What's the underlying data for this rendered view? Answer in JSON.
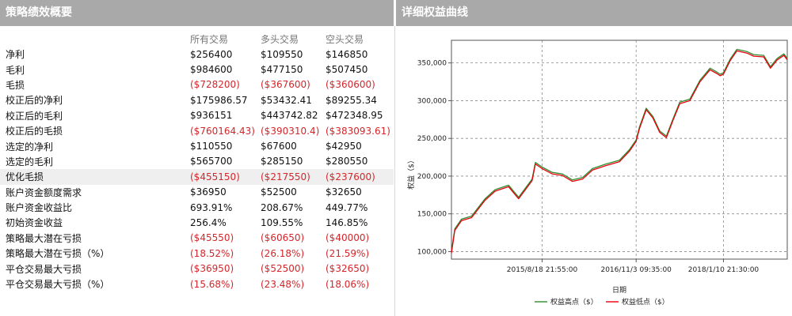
{
  "left_panel": {
    "title": "策略绩效概要",
    "columns": [
      "所有交易",
      "多头交易",
      "空头交易"
    ],
    "rows": [
      {
        "label": "净利",
        "values": [
          "$256400",
          "$109550",
          "$146850"
        ],
        "negative": false
      },
      {
        "label": "毛利",
        "values": [
          "$984600",
          "$477150",
          "$507450"
        ],
        "negative": false
      },
      {
        "label": "毛损",
        "values": [
          "($728200)",
          "($367600)",
          "($360600)"
        ],
        "negative": true
      },
      {
        "label": "校正后的净利",
        "values": [
          "$175986.57",
          "$53432.41",
          "$89255.34"
        ],
        "negative": false
      },
      {
        "label": "校正后的毛利",
        "values": [
          "$936151",
          "$443742.82",
          "$472348.95"
        ],
        "negative": false
      },
      {
        "label": "校正后的毛损",
        "values": [
          "($760164.43)",
          "($390310.4)",
          "($383093.61)"
        ],
        "negative": true
      },
      {
        "label": "选定的净利",
        "values": [
          "$110550",
          "$67600",
          "$42950"
        ],
        "negative": false
      },
      {
        "label": "选定的毛利",
        "values": [
          "$565700",
          "$285150",
          "$280550"
        ],
        "negative": false
      },
      {
        "label": "优化毛损",
        "values": [
          "($455150)",
          "($217550)",
          "($237600)"
        ],
        "negative": true,
        "highlight": true
      },
      {
        "label": "账户资金额度需求",
        "values": [
          "$36950",
          "$52500",
          "$32650"
        ],
        "negative": false
      },
      {
        "label": "账户资金收益比",
        "values": [
          "693.91%",
          "208.67%",
          "449.77%"
        ],
        "negative": false
      },
      {
        "label": "初始资金收益",
        "values": [
          "256.4%",
          "109.55%",
          "146.85%"
        ],
        "negative": false
      },
      {
        "label": "策略最大潜在亏损",
        "values": [
          "($45550)",
          "($60650)",
          "($40000)"
        ],
        "negative": true
      },
      {
        "label": "策略最大潜在亏损（%）",
        "values": [
          "(18.52%)",
          "(26.18%)",
          "(21.59%)"
        ],
        "negative": true
      },
      {
        "label": "平仓交易最大亏损",
        "values": [
          "($36950)",
          "($52500)",
          "($32650)"
        ],
        "negative": true
      },
      {
        "label": "平仓交易最大亏损（%）",
        "values": [
          "(15.68%)",
          "(23.48%)",
          "(18.06%)"
        ],
        "negative": true
      }
    ]
  },
  "right_panel": {
    "title": "详细权益曲线"
  },
  "chart_data": {
    "type": "line",
    "ylabel": "权益（$）",
    "xlabel": "日期",
    "ylim": [
      90000,
      380000
    ],
    "y_ticks": [
      100000,
      150000,
      200000,
      250000,
      300000,
      350000
    ],
    "y_tick_labels": [
      "100,000",
      "150,000",
      "200,000",
      "250,000",
      "300,000",
      "350,000"
    ],
    "x_tick_labels": [
      "2015/8/18 21:55:00",
      "2016/11/3 09:35:00",
      "2018/1/10 21:30:00"
    ],
    "x_tick_positions": [
      0.27,
      0.55,
      0.81
    ],
    "grid": true,
    "legend_position": "bottom",
    "series": [
      {
        "name": "权益高点（$）",
        "color": "#2e8b2e",
        "x": [
          0,
          0.01,
          0.03,
          0.06,
          0.1,
          0.13,
          0.17,
          0.2,
          0.24,
          0.25,
          0.27,
          0.3,
          0.33,
          0.36,
          0.39,
          0.42,
          0.46,
          0.5,
          0.53,
          0.55,
          0.56,
          0.58,
          0.6,
          0.62,
          0.64,
          0.66,
          0.68,
          0.71,
          0.74,
          0.77,
          0.79,
          0.8,
          0.81,
          0.83,
          0.85,
          0.88,
          0.9,
          0.93,
          0.95,
          0.97,
          0.99,
          1.0
        ],
        "values": [
          100000,
          130000,
          143000,
          147000,
          170000,
          182000,
          188000,
          172000,
          196000,
          218000,
          212000,
          205000,
          203000,
          195000,
          198000,
          210000,
          216000,
          221000,
          235000,
          248000,
          265000,
          290000,
          279000,
          260000,
          253000,
          276000,
          298000,
          302000,
          327000,
          343000,
          338000,
          335000,
          337000,
          355000,
          368000,
          365000,
          361000,
          360000,
          345000,
          356000,
          362000,
          356000
        ]
      },
      {
        "name": "权益低点（$）",
        "color": "#e8000b",
        "x": [
          0,
          0.01,
          0.03,
          0.06,
          0.1,
          0.13,
          0.17,
          0.2,
          0.24,
          0.25,
          0.27,
          0.3,
          0.33,
          0.36,
          0.39,
          0.42,
          0.46,
          0.5,
          0.53,
          0.55,
          0.56,
          0.58,
          0.6,
          0.62,
          0.64,
          0.66,
          0.68,
          0.71,
          0.74,
          0.77,
          0.79,
          0.8,
          0.81,
          0.83,
          0.85,
          0.88,
          0.9,
          0.93,
          0.95,
          0.97,
          0.99,
          1.0
        ],
        "values": [
          98000,
          128000,
          141000,
          145000,
          168000,
          180000,
          186000,
          170000,
          194000,
          216000,
          210000,
          203000,
          201000,
          193000,
          196000,
          208000,
          214000,
          219000,
          233000,
          246000,
          263000,
          288000,
          277000,
          258000,
          251000,
          274000,
          296000,
          300000,
          325000,
          341000,
          336000,
          333000,
          335000,
          353000,
          366000,
          363000,
          359000,
          358000,
          343000,
          354000,
          360000,
          354000
        ]
      }
    ]
  }
}
